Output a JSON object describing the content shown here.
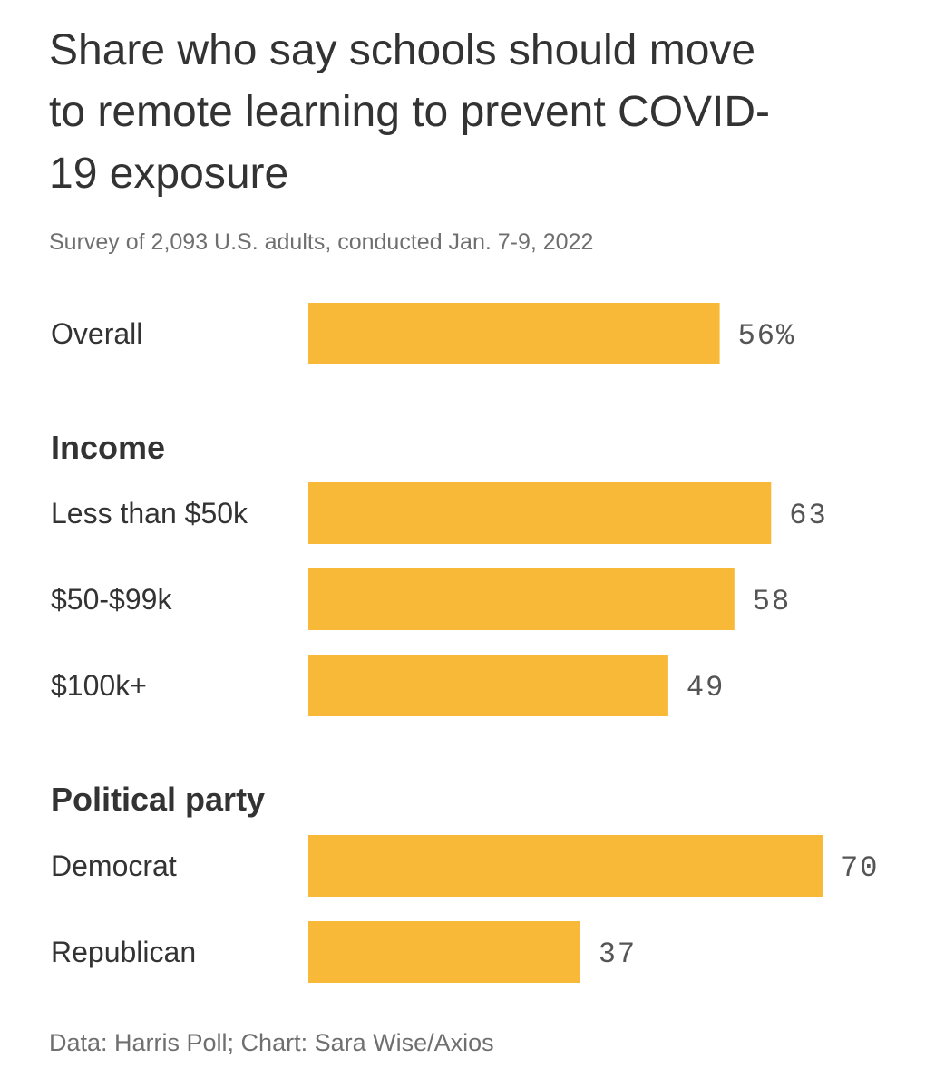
{
  "chart_data": {
    "type": "bar",
    "orientation": "horizontal",
    "title_lines": [
      "Share who say schools should move",
      "to remote learning to prevent COVID-",
      "19 exposure"
    ],
    "subtitle": "Survey of 2,093 U.S. adults, conducted Jan. 7-9, 2022",
    "source": "Data: Harris Poll; Chart: Sara Wise/Axios",
    "xlim": [
      0,
      70
    ],
    "grid": false,
    "legend": "none",
    "bar_color": "#f9b938",
    "rows": [
      {
        "kind": "bar",
        "category": "Overall",
        "value": 56,
        "value_label": "56%"
      },
      {
        "kind": "group",
        "label": "Income"
      },
      {
        "kind": "bar",
        "category": "Less than $50k",
        "value": 63,
        "value_label": "63"
      },
      {
        "kind": "bar",
        "category": "$50-$99k",
        "value": 58,
        "value_label": "58"
      },
      {
        "kind": "bar",
        "category": "$100k+",
        "value": 49,
        "value_label": "49"
      },
      {
        "kind": "group",
        "label": "Political party"
      },
      {
        "kind": "bar",
        "category": "Democrat",
        "value": 70,
        "value_label": "70"
      },
      {
        "kind": "bar",
        "category": "Republican",
        "value": 37,
        "value_label": "37"
      }
    ]
  }
}
